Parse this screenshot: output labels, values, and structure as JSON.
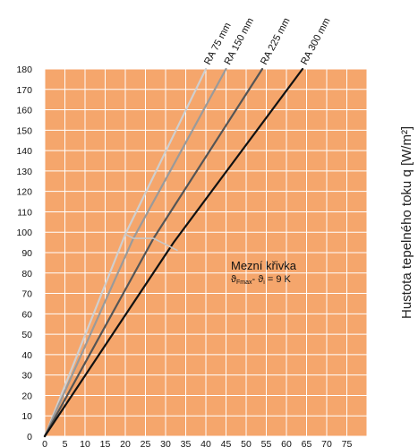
{
  "chart_data": {
    "type": "line",
    "xlim": [
      0,
      80
    ],
    "ylim": [
      0,
      180
    ],
    "x_ticks": [
      0,
      5,
      10,
      15,
      20,
      25,
      30,
      35,
      40,
      45,
      50,
      55,
      60,
      65,
      70,
      75
    ],
    "y_ticks": [
      0,
      10,
      20,
      30,
      40,
      50,
      60,
      70,
      80,
      90,
      100,
      110,
      120,
      130,
      140,
      150,
      160,
      170,
      180
    ],
    "ylabel": "Hustota tepelného toku q [W/m²]",
    "grid": true,
    "colors": {
      "background": "#f5a66c",
      "grid": "#ffffff",
      "limit_curve": "#c8c8c8"
    },
    "series": [
      {
        "name": "RA 75 mm",
        "color": "#cfcfcf",
        "x": [
          0,
          20,
          40
        ],
        "y": [
          0,
          99,
          180
        ]
      },
      {
        "name": "RA 150 mm",
        "color": "#9a9a9a",
        "x": [
          0,
          22,
          45
        ],
        "y": [
          0,
          97,
          180
        ]
      },
      {
        "name": "RA 225 mm",
        "color": "#555555",
        "x": [
          0,
          27,
          54
        ],
        "y": [
          0,
          97,
          180
        ]
      },
      {
        "name": "RA 300 mm",
        "color": "#111111",
        "x": [
          0,
          32,
          64
        ],
        "y": [
          0,
          95,
          180
        ]
      }
    ],
    "limit_curve": {
      "label_line1": "Mezní křivka",
      "label_line2_pre": "ϑ",
      "label_line2_sub1": "Fmax",
      "label_line2_mid": "- ϑ",
      "label_line2_sub2": "i",
      "label_line2_post": " = 9 K",
      "x": [
        20,
        22,
        27,
        33
      ],
      "y": [
        99,
        97,
        97,
        91
      ]
    }
  }
}
